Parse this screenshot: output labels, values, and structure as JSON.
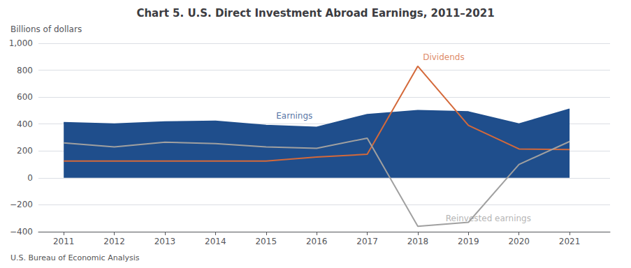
{
  "chart_data": {
    "type": "line",
    "title": "Chart 5. U.S. Direct Investment Abroad Earnings, 2011–2021",
    "y_label": "Billions of dollars",
    "footnote": "U.S. Bureau of Economic Analysis",
    "x": [
      2011,
      2012,
      2013,
      2014,
      2015,
      2016,
      2017,
      2018,
      2019,
      2020,
      2021
    ],
    "series": [
      {
        "name": "Earnings",
        "type": "area",
        "color": "#1f4e8c",
        "values": [
          410,
          400,
          415,
          420,
          390,
          375,
          470,
          500,
          490,
          400,
          510
        ]
      },
      {
        "name": "Dividends",
        "type": "line",
        "color": "#d4693a",
        "values": [
          125,
          125,
          125,
          125,
          125,
          155,
          175,
          830,
          390,
          215,
          210
        ]
      },
      {
        "name": "Reinvested earnings",
        "type": "line",
        "color": "#a0a0a0",
        "values": [
          260,
          230,
          265,
          255,
          230,
          220,
          295,
          -360,
          -330,
          100,
          270
        ]
      }
    ],
    "annotations": [
      {
        "text": "Earnings",
        "x": 2015.2,
        "y": 420
      },
      {
        "text": "Dividends",
        "x": 2018.1,
        "y": 855
      },
      {
        "text": "Reinvested earnings",
        "x": 2018.55,
        "y": -345
      }
    ],
    "xlim": [
      2010.5,
      2021.8
    ],
    "xticks": [
      2011,
      2012,
      2013,
      2014,
      2015,
      2016,
      2017,
      2018,
      2019,
      2020,
      2021
    ],
    "ylim": [
      -400,
      1000
    ],
    "yticks": [
      {
        "value": -400,
        "label": "−400"
      },
      {
        "value": -200,
        "label": "−200"
      },
      0,
      200,
      400,
      600,
      800,
      {
        "value": 1000,
        "label": "1,000"
      }
    ],
    "grid": true,
    "legend": "none"
  }
}
